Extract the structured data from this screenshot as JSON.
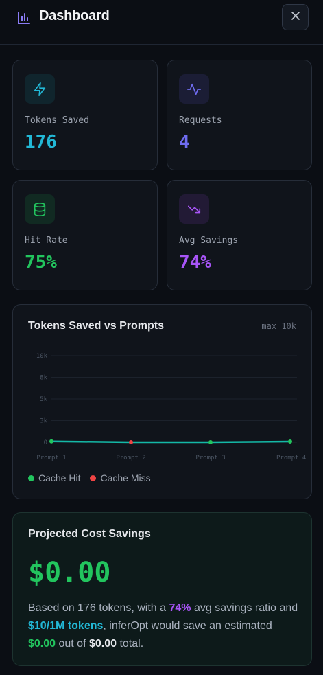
{
  "header": {
    "title": "Dashboard",
    "logo_icon": "bar-chart-icon",
    "close_icon": "close-icon"
  },
  "stats": [
    {
      "label": "Tokens Saved",
      "value": "176",
      "icon": "lightning-icon",
      "color": "#22b8d6"
    },
    {
      "label": "Requests",
      "value": "4",
      "icon": "activity-icon",
      "color": "#6f6cf0"
    },
    {
      "label": "Hit Rate",
      "value": "75%",
      "icon": "database-icon",
      "color": "#22c55e"
    },
    {
      "label": "Avg Savings",
      "value": "74%",
      "icon": "trending-down-icon",
      "color": "#a855f7"
    }
  ],
  "chart": {
    "title": "Tokens Saved vs Prompts",
    "max_label": "max 10k"
  },
  "chart_data": {
    "type": "line",
    "categories": [
      "Prompt 1",
      "Prompt 2",
      "Prompt 3",
      "Prompt 4"
    ],
    "values": [
      100,
      0,
      0,
      76
    ],
    "hit": [
      true,
      false,
      true,
      true
    ],
    "ylim": [
      0,
      10000
    ],
    "yticks": [
      0,
      2500,
      5000,
      7500,
      10000
    ],
    "ytick_labels": [
      "0",
      "3k",
      "5k",
      "8k",
      "10k"
    ],
    "grid": true,
    "legend": [
      {
        "name": "Cache Hit",
        "color": "#22c55e"
      },
      {
        "name": "Cache Miss",
        "color": "#ef4444"
      }
    ],
    "line_color": "#14b8a6"
  },
  "projection": {
    "title": "Projected Cost Savings",
    "value": "$0.00",
    "desc_1": "Based on 176 tokens, with a ",
    "ratio": "74%",
    "desc_2": " avg savings ratio and ",
    "rate": "$10/1M tokens",
    "desc_3": ", inferOpt would save an estimated ",
    "saved": "$0.00",
    "desc_4": " out of ",
    "total": "$0.00",
    "desc_5": " total."
  }
}
